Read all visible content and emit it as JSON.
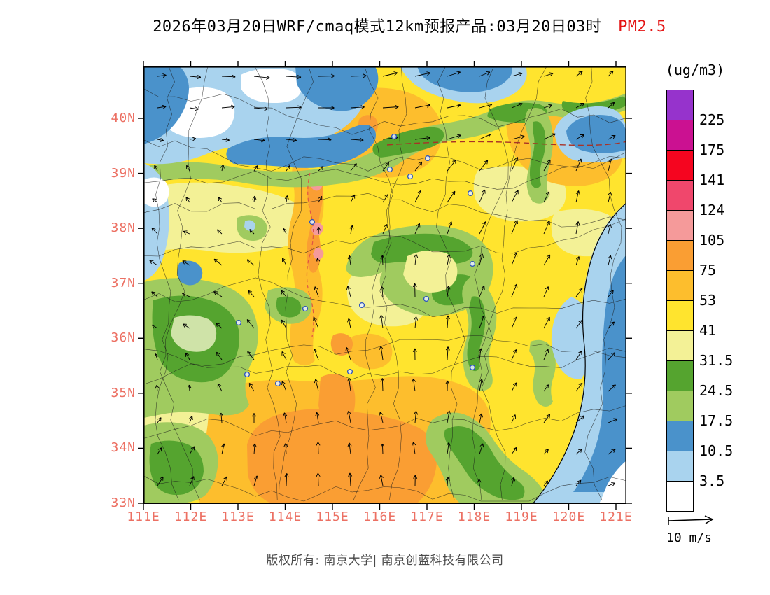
{
  "title": {
    "text": "2026年03月20日WRF/cmaq模式12km预报产品:03月20日03时",
    "species": "PM2.5",
    "species_color": "#e41414"
  },
  "legend": {
    "unit": "(ug/m3)",
    "cells": [
      {
        "color": "#9633CC",
        "boundary_label": "225"
      },
      {
        "color": "#CB1191",
        "boundary_label": "175"
      },
      {
        "color": "#F5051F",
        "boundary_label": "141"
      },
      {
        "color": "#F0476C",
        "boundary_label": "124"
      },
      {
        "color": "#F59A9A",
        "boundary_label": "105"
      },
      {
        "color": "#FA9E33",
        "boundary_label": "75"
      },
      {
        "color": "#FDBE2D",
        "boundary_label": "53"
      },
      {
        "color": "#FFE42E",
        "boundary_label": "41"
      },
      {
        "color": "#F3F196",
        "boundary_label": "31.5"
      },
      {
        "color": "#55A42F",
        "boundary_label": "24.5"
      },
      {
        "color": "#A0CB5F",
        "boundary_label": "17.5"
      },
      {
        "color": "#4A92CB",
        "boundary_label": "10.5"
      },
      {
        "color": "#A9D3EE",
        "boundary_label": "3.5"
      },
      {
        "color": "#FFFFFF",
        "boundary_label": null
      }
    ]
  },
  "axes": {
    "lat_labels": [
      "40N",
      "39N",
      "38N",
      "37N",
      "36N",
      "35N",
      "34N",
      "33N"
    ],
    "lon_labels": [
      "111E",
      "112E",
      "113E",
      "114E",
      "115E",
      "116E",
      "117E",
      "118E",
      "119E",
      "120E",
      "121E"
    ],
    "tick_label_color": "#EC7063"
  },
  "map_colors": {
    "yellow": "#FFE42E",
    "pale_yellow": "#F3F196",
    "amber": "#FDBE2D",
    "orange": "#FA9E33",
    "salmon": "#F59A9A",
    "green": "#55A42F",
    "light_green": "#A0CB5F",
    "pale_green": "#CFE3A8",
    "blue": "#4A92CB",
    "pale_blue": "#A9D3EE",
    "white": "#FFFFFF",
    "boundary": "#1a1a1a",
    "station": "#2A52BE",
    "dashed_contour": "#A93226",
    "dashed_contour2": "#E05544"
  },
  "wind_reference": {
    "label": "10 m/s"
  },
  "footer": {
    "copyright": "版权所有: 南京大学| 南京创蓝科技有限公司"
  }
}
